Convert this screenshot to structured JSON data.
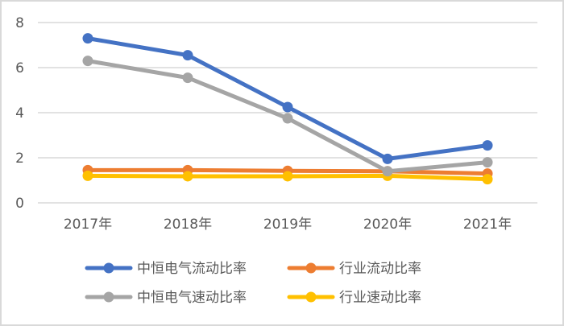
{
  "chart_data": {
    "type": "line",
    "title": "",
    "xlabel": "",
    "ylabel": "",
    "categories": [
      "2017年",
      "2018年",
      "2019年",
      "2020年",
      "2021年"
    ],
    "ylim": [
      0,
      8
    ],
    "yticks": [
      "0",
      "2",
      "4",
      "6",
      "8"
    ],
    "grid": true,
    "legend_position": "bottom",
    "series": [
      {
        "name": "中恒电气流动比率",
        "color": "#4472c4",
        "values": [
          7.3,
          6.55,
          4.25,
          1.95,
          2.55
        ]
      },
      {
        "name": "行业流动比率",
        "color": "#ed7d31",
        "values": [
          1.45,
          1.45,
          1.42,
          1.4,
          1.3
        ]
      },
      {
        "name": "中恒电气速动比率",
        "color": "#a5a5a5",
        "values": [
          6.3,
          5.55,
          3.75,
          1.4,
          1.8
        ]
      },
      {
        "name": "行业速动比率",
        "color": "#ffc000",
        "values": [
          1.2,
          1.18,
          1.18,
          1.2,
          1.05
        ]
      }
    ]
  }
}
